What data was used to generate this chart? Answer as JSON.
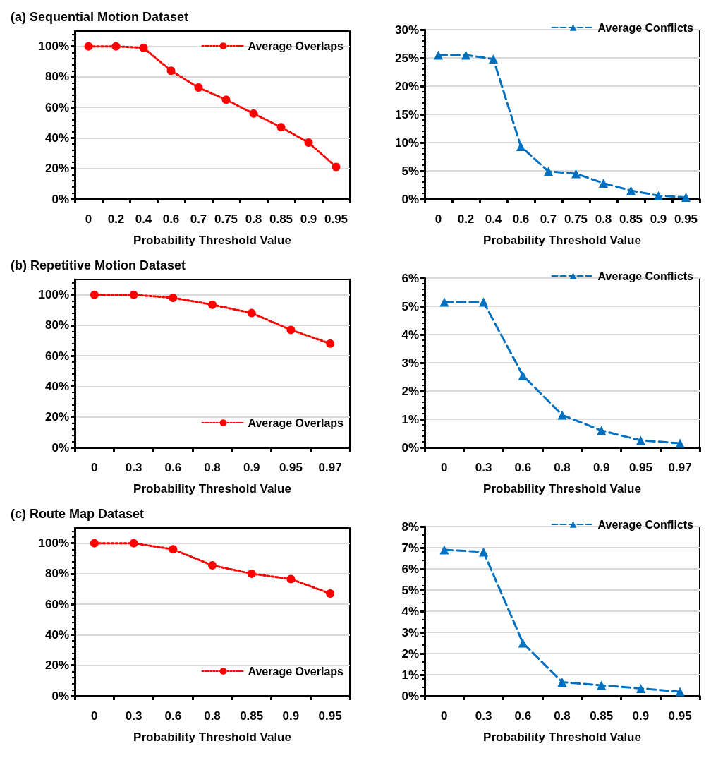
{
  "chart_data": [
    {
      "type": "line",
      "title": "(a) Sequential Motion Dataset",
      "xlabel": "Probability Threshold Value",
      "categories": [
        "0",
        "0.2",
        "0.4",
        "0.6",
        "0.7",
        "0.75",
        "0.8",
        "0.85",
        "0.9",
        "0.95"
      ],
      "series": [
        {
          "name": "Average Overlaps",
          "color": "#ff0000",
          "values": [
            100,
            100,
            99,
            84,
            73,
            65,
            56,
            47,
            37,
            21
          ]
        }
      ],
      "ylim": [
        0,
        110
      ],
      "yticks": [
        {
          "value": 0,
          "label": "0%"
        },
        {
          "value": 20,
          "label": "20%"
        },
        {
          "value": 40,
          "label": "40%"
        },
        {
          "value": 60,
          "label": "60%"
        },
        {
          "value": 80,
          "label": "80%"
        },
        {
          "value": 100,
          "label": "100%"
        }
      ],
      "grid": "y",
      "legend": "top right",
      "marker": "circle",
      "line_style": "dotted"
    },
    {
      "type": "line",
      "xlabel": "Probability Threshold Value",
      "categories": [
        "0",
        "0.2",
        "0.4",
        "0.6",
        "0.7",
        "0.75",
        "0.8",
        "0.85",
        "0.9",
        "0.95"
      ],
      "series": [
        {
          "name": "Average Conflicts",
          "color": "#0070c0",
          "values": [
            25.5,
            25.5,
            24.8,
            9.3,
            4.9,
            4.5,
            2.8,
            1.5,
            0.6,
            0.3
          ]
        }
      ],
      "ylim": [
        0,
        30
      ],
      "yticks": [
        {
          "value": 0,
          "label": "0%"
        },
        {
          "value": 5,
          "label": "5%"
        },
        {
          "value": 10,
          "label": "10%"
        },
        {
          "value": 15,
          "label": "15%"
        },
        {
          "value": 20,
          "label": "20%"
        },
        {
          "value": 25,
          "label": "25%"
        },
        {
          "value": 30,
          "label": "30%"
        }
      ],
      "grid": "y",
      "legend": "top right",
      "marker": "triangle",
      "line_style": "dashed"
    },
    {
      "type": "line",
      "title": "(b) Repetitive Motion Dataset",
      "xlabel": "Probability Threshold Value",
      "categories": [
        "0",
        "0.3",
        "0.6",
        "0.8",
        "0.9",
        "0.95",
        "0.97"
      ],
      "series": [
        {
          "name": "Average Overlaps",
          "color": "#ff0000",
          "values": [
            100,
            100,
            98,
            93.5,
            88,
            77,
            68
          ]
        }
      ],
      "ylim": [
        0,
        110
      ],
      "yticks": [
        {
          "value": 0,
          "label": "0%"
        },
        {
          "value": 20,
          "label": "20%"
        },
        {
          "value": 40,
          "label": "40%"
        },
        {
          "value": 60,
          "label": "60%"
        },
        {
          "value": 80,
          "label": "80%"
        },
        {
          "value": 100,
          "label": "100%"
        }
      ],
      "grid": "y",
      "legend": "bottom right",
      "marker": "circle",
      "line_style": "dotted"
    },
    {
      "type": "line",
      "xlabel": "Probability Threshold Value",
      "categories": [
        "0",
        "0.3",
        "0.6",
        "0.8",
        "0.9",
        "0.95",
        "0.97"
      ],
      "series": [
        {
          "name": "Average Conflicts",
          "color": "#0070c0",
          "values": [
            5.15,
            5.15,
            2.55,
            1.15,
            0.6,
            0.25,
            0.15
          ]
        }
      ],
      "ylim": [
        0,
        6
      ],
      "yticks": [
        {
          "value": 0,
          "label": "0%"
        },
        {
          "value": 1,
          "label": "1%"
        },
        {
          "value": 2,
          "label": "2%"
        },
        {
          "value": 3,
          "label": "3%"
        },
        {
          "value": 4,
          "label": "4%"
        },
        {
          "value": 5,
          "label": "5%"
        },
        {
          "value": 6,
          "label": "6%"
        }
      ],
      "grid": "y",
      "legend": "top right",
      "marker": "triangle",
      "line_style": "dashed"
    },
    {
      "type": "line",
      "title": "(c) Route Map Dataset",
      "xlabel": "Probability Threshold Value",
      "categories": [
        "0",
        "0.3",
        "0.6",
        "0.8",
        "0.85",
        "0.9",
        "0.95"
      ],
      "series": [
        {
          "name": "Average Overlaps",
          "color": "#ff0000",
          "values": [
            100,
            100,
            96,
            85.5,
            80,
            76.5,
            67
          ]
        }
      ],
      "ylim": [
        0,
        110
      ],
      "yticks": [
        {
          "value": 0,
          "label": "0%"
        },
        {
          "value": 20,
          "label": "20%"
        },
        {
          "value": 40,
          "label": "40%"
        },
        {
          "value": 60,
          "label": "60%"
        },
        {
          "value": 80,
          "label": "80%"
        },
        {
          "value": 100,
          "label": "100%"
        }
      ],
      "grid": "y",
      "legend": "bottom right",
      "marker": "circle",
      "line_style": "dotted"
    },
    {
      "type": "line",
      "xlabel": "Probability Threshold Value",
      "categories": [
        "0",
        "0.3",
        "0.6",
        "0.8",
        "0.85",
        "0.9",
        "0.95"
      ],
      "series": [
        {
          "name": "Average Conflicts",
          "color": "#0070c0",
          "values": [
            6.9,
            6.8,
            2.5,
            0.65,
            0.5,
            0.35,
            0.2
          ]
        }
      ],
      "ylim": [
        0,
        8
      ],
      "yticks": [
        {
          "value": 0,
          "label": "0%"
        },
        {
          "value": 1,
          "label": "1%"
        },
        {
          "value": 2,
          "label": "2%"
        },
        {
          "value": 3,
          "label": "3%"
        },
        {
          "value": 4,
          "label": "4%"
        },
        {
          "value": 5,
          "label": "5%"
        },
        {
          "value": 6,
          "label": "6%"
        },
        {
          "value": 7,
          "label": "7%"
        },
        {
          "value": 8,
          "label": "8%"
        }
      ],
      "grid": "y",
      "legend": "top right",
      "marker": "triangle",
      "line_style": "dashed"
    }
  ]
}
